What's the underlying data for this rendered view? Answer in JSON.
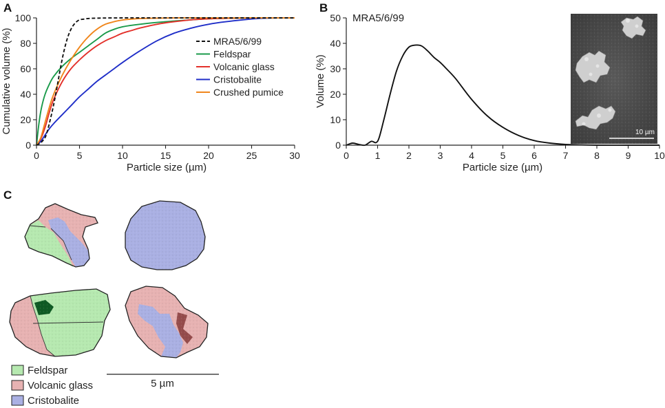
{
  "panels": {
    "a": "A",
    "b": "B",
    "c": "C"
  },
  "chart_data": [
    {
      "type": "line",
      "panel": "A",
      "xlabel": "Particle size (µm)",
      "ylabel": "Cumulative volume (%)",
      "xlim": [
        0,
        30
      ],
      "ylim": [
        0,
        100
      ],
      "xticks": [
        0,
        5,
        10,
        15,
        20,
        25,
        30
      ],
      "yticks": [
        0,
        20,
        40,
        60,
        80,
        100
      ],
      "series": [
        {
          "name": "MRA5/6/99",
          "color": "#111111",
          "dash": true,
          "x": [
            0,
            0.5,
            1,
            1.3,
            1.6,
            2,
            2.5,
            3,
            3.5,
            4,
            4.5,
            5,
            5.5,
            6,
            7,
            10,
            20,
            25,
            30
          ],
          "y": [
            0,
            2,
            6,
            12,
            20,
            32,
            50,
            68,
            82,
            91,
            96,
            98.5,
            99,
            99.5,
            99.8,
            100,
            100,
            100,
            100
          ]
        },
        {
          "name": "Feldspar",
          "color": "#1a9a4a",
          "dash": false,
          "x": [
            0,
            0.3,
            0.6,
            1,
            1.5,
            2,
            3,
            4,
            5,
            6,
            7,
            8,
            9,
            10,
            12,
            15,
            18,
            20,
            22,
            25,
            28,
            30
          ],
          "y": [
            0,
            18,
            30,
            40,
            48,
            54,
            62,
            68,
            73,
            78,
            83,
            88,
            91,
            93,
            95,
            97,
            98.5,
            99.3,
            99.7,
            100,
            100,
            100
          ]
        },
        {
          "name": "Volcanic glass",
          "color": "#e3302a",
          "dash": false,
          "x": [
            0,
            0.5,
            1,
            1.5,
            2,
            3,
            4,
            5,
            6,
            7,
            8,
            9,
            10,
            11,
            12,
            14,
            16,
            18,
            20,
            22,
            25,
            30
          ],
          "y": [
            0,
            5,
            14,
            26,
            36,
            50,
            60,
            67,
            73,
            78,
            82,
            85,
            88,
            90,
            92,
            95,
            97,
            98.5,
            99.3,
            99.7,
            100,
            100
          ]
        },
        {
          "name": "Cristobalite",
          "color": "#1f2ec8",
          "dash": false,
          "x": [
            0,
            0.5,
            1,
            1.5,
            2,
            3,
            4,
            5,
            6,
            7,
            8,
            9,
            10,
            12,
            14,
            16,
            18,
            20,
            22,
            24,
            26,
            28,
            30
          ],
          "y": [
            0,
            3,
            8,
            13,
            17,
            24,
            31,
            38,
            44,
            50,
            55,
            60,
            65,
            74,
            82,
            88,
            92,
            95,
            97,
            98.5,
            99.6,
            100,
            100
          ]
        },
        {
          "name": "Crushed pumice",
          "color": "#f0861c",
          "dash": false,
          "x": [
            0,
            0.5,
            1,
            1.5,
            2,
            3,
            4,
            5,
            6,
            7,
            8,
            9,
            10,
            11,
            12,
            14,
            16,
            18,
            20,
            25,
            30
          ],
          "y": [
            0,
            6,
            18,
            30,
            40,
            55,
            67,
            77,
            85,
            91,
            95,
            97,
            98.3,
            99,
            99.5,
            99.8,
            100,
            100,
            100,
            100,
            100
          ]
        }
      ]
    },
    {
      "type": "line",
      "panel": "B",
      "title": "MRA5/6/99",
      "xlabel": "Particle size (µm)",
      "ylabel": "Volume (%)",
      "xlim": [
        0,
        10
      ],
      "ylim": [
        0,
        50
      ],
      "xticks": [
        0,
        1,
        2,
        3,
        4,
        5,
        6,
        7,
        8,
        9,
        10
      ],
      "yticks": [
        0,
        10,
        20,
        30,
        40,
        50
      ],
      "series": [
        {
          "name": "MRA5/6/99",
          "color": "#111111",
          "x": [
            0,
            0.2,
            0.4,
            0.6,
            0.8,
            0.95,
            1.05,
            1.2,
            1.4,
            1.6,
            1.8,
            2,
            2.2,
            2.4,
            2.6,
            2.8,
            3,
            3.2,
            3.5,
            4,
            4.5,
            5,
            5.5,
            6,
            6.5,
            7,
            7.5,
            8,
            9,
            10
          ],
          "y": [
            0,
            0.8,
            0.3,
            0,
            1.5,
            1,
            3,
            10,
            20,
            29,
            35,
            38.5,
            39.3,
            39,
            37,
            34.5,
            32.5,
            30,
            26,
            18,
            11.5,
            7,
            3.8,
            1.8,
            0.8,
            0.3,
            0.1,
            0,
            0,
            0
          ]
        }
      ],
      "inset": {
        "scale_label": "10 µm"
      }
    }
  ],
  "panel_c": {
    "legend": [
      {
        "label": "Feldspar",
        "color": "#b6e9b0"
      },
      {
        "label": "Volcanic glass",
        "color": "#e7b2b2"
      },
      {
        "label": "Cristobalite",
        "color": "#aab0e3"
      }
    ],
    "scale_label": "5 µm"
  }
}
